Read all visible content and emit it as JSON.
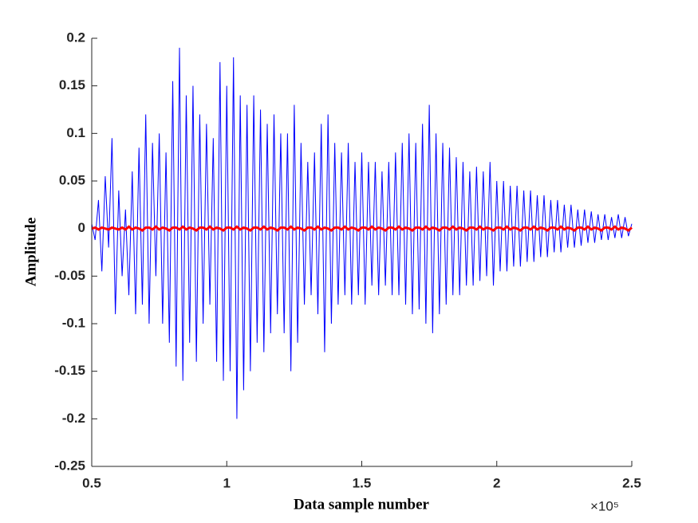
{
  "chart_data": {
    "type": "line",
    "xlabel": "Data sample number",
    "ylabel": "Amplitude",
    "x_exponent": "×10⁵",
    "xlim": [
      50000,
      250000
    ],
    "xticks": [
      {
        "value": 50000,
        "label": "0.5"
      },
      {
        "value": 100000,
        "label": "1"
      },
      {
        "value": 150000,
        "label": "1.5"
      },
      {
        "value": 200000,
        "label": "2"
      },
      {
        "value": 250000,
        "label": "2.5"
      }
    ],
    "ylim": [
      -0.25,
      0.2
    ],
    "yticks": [
      -0.25,
      -0.2,
      -0.15,
      -0.1,
      -0.05,
      0,
      0.05,
      0.1,
      0.15,
      0.2
    ],
    "x": [
      50000,
      51250,
      52500,
      53750,
      55000,
      56250,
      57500,
      58750,
      60000,
      61250,
      62500,
      63750,
      65000,
      66250,
      67500,
      68750,
      70000,
      71250,
      72500,
      73750,
      75000,
      76250,
      77500,
      78750,
      80000,
      81250,
      82500,
      83750,
      85000,
      86250,
      87500,
      88750,
      90000,
      91250,
      92500,
      93750,
      95000,
      96250,
      97500,
      98750,
      100000,
      101250,
      102500,
      103750,
      105000,
      106250,
      107500,
      108750,
      110000,
      111250,
      112500,
      113750,
      115000,
      116250,
      117500,
      118750,
      120000,
      121250,
      122500,
      123750,
      125000,
      126250,
      127500,
      128750,
      130000,
      131250,
      132500,
      133750,
      135000,
      136250,
      137500,
      138750,
      140000,
      141250,
      142500,
      143750,
      145000,
      146250,
      147500,
      148750,
      150000,
      151250,
      152500,
      153750,
      155000,
      156250,
      157500,
      158750,
      160000,
      161250,
      162500,
      163750,
      165000,
      166250,
      167500,
      168750,
      170000,
      171250,
      172500,
      173750,
      175000,
      176250,
      177500,
      178750,
      180000,
      181250,
      182500,
      183750,
      185000,
      186250,
      187500,
      188750,
      190000,
      191250,
      192500,
      193750,
      195000,
      196250,
      197500,
      198750,
      200000,
      201250,
      202500,
      203750,
      205000,
      206250,
      207500,
      208750,
      210000,
      211250,
      212500,
      213750,
      215000,
      216250,
      217500,
      218750,
      220000,
      221250,
      222500,
      223750,
      225000,
      226250,
      227500,
      228750,
      230000,
      231250,
      232500,
      233750,
      235000,
      236250,
      237500,
      238750,
      240000,
      241250,
      242500,
      243750,
      245000,
      246250,
      247500,
      248750,
      250000
    ],
    "series": [
      {
        "color": "#0000ff",
        "width": 1,
        "values": [
          0.005,
          -0.012,
          0.03,
          -0.045,
          0.055,
          -0.02,
          0.095,
          -0.09,
          0.04,
          -0.05,
          0.02,
          -0.07,
          0.06,
          -0.09,
          0.085,
          -0.08,
          0.12,
          -0.1,
          0.09,
          -0.05,
          0.1,
          -0.1,
          0.08,
          -0.12,
          0.155,
          -0.145,
          0.19,
          -0.16,
          0.14,
          -0.12,
          0.15,
          -0.14,
          0.12,
          -0.1,
          0.11,
          -0.08,
          0.095,
          -0.14,
          0.175,
          -0.16,
          0.15,
          -0.15,
          0.18,
          -0.2,
          0.14,
          -0.17,
          0.13,
          -0.15,
          0.14,
          -0.12,
          0.125,
          -0.13,
          0.11,
          -0.11,
          0.12,
          -0.09,
          0.1,
          -0.11,
          0.1,
          -0.15,
          0.13,
          -0.12,
          0.09,
          -0.08,
          0.07,
          -0.07,
          0.08,
          -0.09,
          0.11,
          -0.13,
          0.12,
          -0.1,
          0.09,
          -0.08,
          0.08,
          -0.07,
          0.09,
          -0.08,
          0.07,
          -0.07,
          0.08,
          -0.08,
          0.07,
          -0.06,
          0.07,
          -0.07,
          0.06,
          -0.06,
          0.07,
          -0.07,
          0.08,
          -0.07,
          0.09,
          -0.08,
          0.1,
          -0.09,
          0.09,
          -0.085,
          0.11,
          -0.1,
          0.13,
          -0.11,
          0.1,
          -0.09,
          0.09,
          -0.08,
          0.085,
          -0.07,
          0.075,
          -0.07,
          0.07,
          -0.06,
          0.06,
          -0.06,
          0.065,
          -0.055,
          0.06,
          -0.05,
          0.07,
          -0.06,
          0.05,
          -0.045,
          0.05,
          -0.045,
          0.045,
          -0.04,
          0.045,
          -0.04,
          0.04,
          -0.035,
          0.04,
          -0.035,
          0.035,
          -0.03,
          0.035,
          -0.03,
          0.03,
          -0.025,
          0.03,
          -0.025,
          0.025,
          -0.02,
          0.025,
          -0.02,
          0.02,
          -0.018,
          0.02,
          -0.015,
          0.018,
          -0.015,
          0.015,
          -0.012,
          0.015,
          -0.012,
          0.012,
          -0.01,
          0.015,
          -0.01,
          0.012,
          -0.008,
          0.005
        ]
      },
      {
        "color": "#ff0000",
        "width": 3,
        "values": [
          0,
          0.001,
          -0.001,
          0.001,
          0,
          -0.001,
          0.001,
          0,
          -0.001,
          0.001,
          -0.001,
          0.002,
          -0.001,
          0.001,
          0,
          -0.002,
          0.001,
          0.001,
          -0.001,
          0.002,
          -0.001,
          0.001,
          0,
          -0.002,
          0.001,
          0.001,
          -0.001,
          0.002,
          -0.001,
          0.001,
          0,
          -0.002,
          0.001,
          0.001,
          -0.001,
          0.002,
          -0.001,
          0.001,
          0,
          -0.002,
          0.001,
          0.001,
          -0.001,
          0.002,
          -0.001,
          0.001,
          0,
          -0.002,
          0.001,
          0.001,
          -0.001,
          0.002,
          -0.001,
          0.001,
          0,
          -0.002,
          0.001,
          0.001,
          -0.001,
          0.002,
          -0.001,
          0.001,
          0,
          -0.002,
          0.001,
          0.001,
          -0.001,
          0.002,
          -0.001,
          0.001,
          0,
          -0.002,
          0.001,
          0.001,
          -0.001,
          0.002,
          -0.001,
          0.001,
          0,
          -0.002,
          0.001,
          0.001,
          -0.001,
          0.002,
          -0.001,
          0.001,
          0,
          -0.002,
          0.001,
          0.001,
          -0.001,
          0.002,
          -0.001,
          0.001,
          0,
          -0.002,
          0.001,
          0.001,
          -0.001,
          0.002,
          -0.001,
          0.001,
          0,
          -0.002,
          0.001,
          0.001,
          -0.001,
          0.002,
          -0.001,
          0.001,
          0,
          -0.002,
          0.001,
          0.001,
          -0.001,
          0.002,
          -0.001,
          0.001,
          0,
          -0.002,
          0.001,
          0.001,
          -0.001,
          0.002,
          -0.001,
          0.001,
          0,
          -0.002,
          0.001,
          0.001,
          -0.001,
          0.002,
          -0.001,
          0.001,
          0,
          -0.002,
          0.001,
          0.001,
          -0.001,
          0.002,
          -0.001,
          0.001,
          0,
          -0.002,
          0.001,
          0.001,
          -0.001,
          0.002,
          -0.001,
          0.001,
          0,
          -0.002,
          0.001,
          0.001,
          -0.001,
          0.002,
          -0.001,
          0.001,
          0,
          -0.002,
          0.001
        ]
      }
    ]
  }
}
